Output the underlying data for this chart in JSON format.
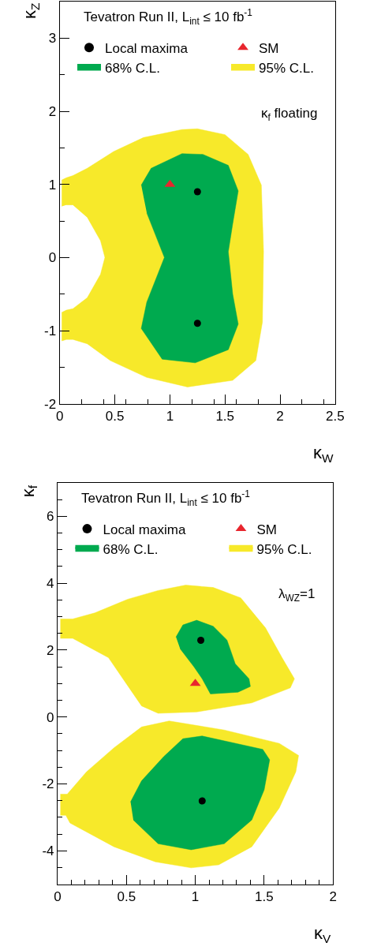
{
  "chart_data": [
    {
      "type": "area",
      "legend_title": "Tevatron Run II, L$_{int}$ ≤ 10 fb$^{-1}$",
      "xlabel": "κ$_{W}$",
      "ylabel": "κ$_{Z}$",
      "xlim": [
        0,
        2.5
      ],
      "xticks": [
        0,
        0.5,
        1,
        1.5,
        2,
        2.5
      ],
      "ylim": [
        -2,
        3.5
      ],
      "yticks": [
        -2,
        -1,
        0,
        1,
        2,
        3
      ],
      "legend": "top",
      "annotations": [
        "κ$_{f}$ floating"
      ],
      "series": [
        {
          "name": "Local maxima",
          "type": "scatter",
          "marker": "circle",
          "color": "#000000",
          "x": [
            1.25,
            1.25
          ],
          "values": [
            0.9,
            -0.9
          ]
        },
        {
          "name": "SM",
          "type": "scatter",
          "marker": "triangle",
          "color": "#e8262e",
          "x": [
            1
          ],
          "values": [
            1
          ]
        },
        {
          "name": "68% C.L.",
          "color": "#00aa4f",
          "x": [
            0.74,
            0.83,
            1.11,
            1.3,
            1.53,
            1.62,
            1.57,
            1.53,
            1.57,
            1.62,
            1.53,
            1.23,
            0.93,
            0.74,
            0.79,
            0.95,
            0.79
          ],
          "values": [
            0.99,
            1.22,
            1.42,
            1.41,
            1.26,
            0.91,
            0.46,
            0.08,
            -0.5,
            -0.91,
            -1.26,
            -1.44,
            -1.39,
            -0.97,
            -0.61,
            0,
            0.61
          ]
        },
        {
          "name": "95% C.L.",
          "color": "#f7e92a",
          "x": [
            0.02,
            0.02,
            0.06,
            0.12,
            0.25,
            0.49,
            0.76,
            1.11,
            1.25,
            1.5,
            1.71,
            1.83,
            1.85,
            1.84,
            1.78,
            1.57,
            1.16,
            0.79,
            0.46,
            0.25,
            0.12,
            0.06,
            0.02,
            0.02,
            0.06,
            0.12,
            0.25,
            0.37,
            0.41,
            0.37,
            0.25,
            0.12,
            0.06
          ],
          "values": [
            0.7,
            1.06,
            1.09,
            1.12,
            1.22,
            1.45,
            1.64,
            1.75,
            1.76,
            1.68,
            1.41,
            0.99,
            0.08,
            -0.88,
            -1.41,
            -1.68,
            -1.77,
            -1.64,
            -1.41,
            -1.18,
            -1.12,
            -1.12,
            -1.14,
            -0.75,
            -0.72,
            -0.7,
            -0.55,
            -0.23,
            0,
            0.23,
            0.55,
            0.72,
            0.72
          ]
        }
      ]
    },
    {
      "type": "area",
      "legend_title": "Tevatron Run II, L$_{int}$ ≤ 10 fb$^{-1}$",
      "xlabel": "κ$_{V}$",
      "ylabel": "κ$_{f}$",
      "xlim": [
        0,
        2
      ],
      "xticks": [
        0,
        0.5,
        1,
        1.5,
        2
      ],
      "ylim": [
        -5,
        7
      ],
      "yticks": [
        -4,
        -2,
        0,
        2,
        4,
        6
      ],
      "legend": "top",
      "annotations": [
        "λ$_{WZ}$=1"
      ],
      "series": [
        {
          "name": "Local maxima",
          "type": "scatter",
          "marker": "circle",
          "color": "#000000",
          "x": [
            1.04,
            1.05
          ],
          "values": [
            2.29,
            -2.51
          ]
        },
        {
          "name": "SM",
          "type": "scatter",
          "marker": "triangle",
          "color": "#e8262e",
          "x": [
            1
          ],
          "values": [
            1
          ]
        },
        {
          "name": "68% C.L.",
          "color": "#00aa4f",
          "x": [
            0.86,
            0.91,
            1.01,
            1.13,
            1.23,
            1.29,
            1.39,
            1.4,
            1.31,
            1.11,
            1.05,
            0.99,
            0.89,
            null,
            0.53,
            0.61,
            0.77,
            0.91,
            1.05,
            1.49,
            1.54,
            1.5,
            1.41,
            1.21,
            0.97,
            0.73,
            0.55
          ],
          "values": [
            2.39,
            2.75,
            2.89,
            2.71,
            2.3,
            1.59,
            1.14,
            0.91,
            0.74,
            0.69,
            1.14,
            1.5,
            2.04,
            null,
            -2.54,
            -1.91,
            -1.19,
            -0.65,
            -0.57,
            -0.97,
            -1.28,
            -2.18,
            -3.08,
            -3.79,
            -3.97,
            -3.79,
            -3.08
          ]
        },
        {
          "name": "95% C.L.",
          "color": "#f7e92a",
          "x": [
            0.02,
            0.11,
            0.27,
            0.51,
            0.73,
            0.93,
            1.13,
            1.33,
            1.51,
            1.63,
            1.72,
            1.69,
            1.41,
            1.01,
            0.73,
            0.61,
            0.49,
            0.37,
            0.25,
            0.11,
            0.02,
            null,
            0.02,
            0.07,
            0.21,
            0.41,
            0.61,
            0.81,
            1.21,
            1.61,
            1.75,
            1.73,
            1.61,
            1.41,
            1.17,
            0.97,
            0.71,
            0.41,
            0.09,
            0.06,
            0.02
          ],
          "values": [
            2.93,
            2.93,
            3.11,
            3.52,
            3.78,
            3.94,
            3.87,
            3.56,
            2.66,
            1.77,
            1.14,
            0.87,
            0.42,
            0.15,
            0.11,
            0.33,
            1.05,
            1.77,
            2.04,
            2.35,
            2.35,
            null,
            -2.31,
            -2.31,
            -1.64,
            -0.92,
            -0.3,
            -0.12,
            -0.39,
            -0.79,
            -1.15,
            -1.64,
            -2.72,
            -3.88,
            -4.42,
            -4.51,
            -4.33,
            -3.88,
            -3.17,
            -2.94,
            -2.94
          ]
        }
      ]
    }
  ]
}
